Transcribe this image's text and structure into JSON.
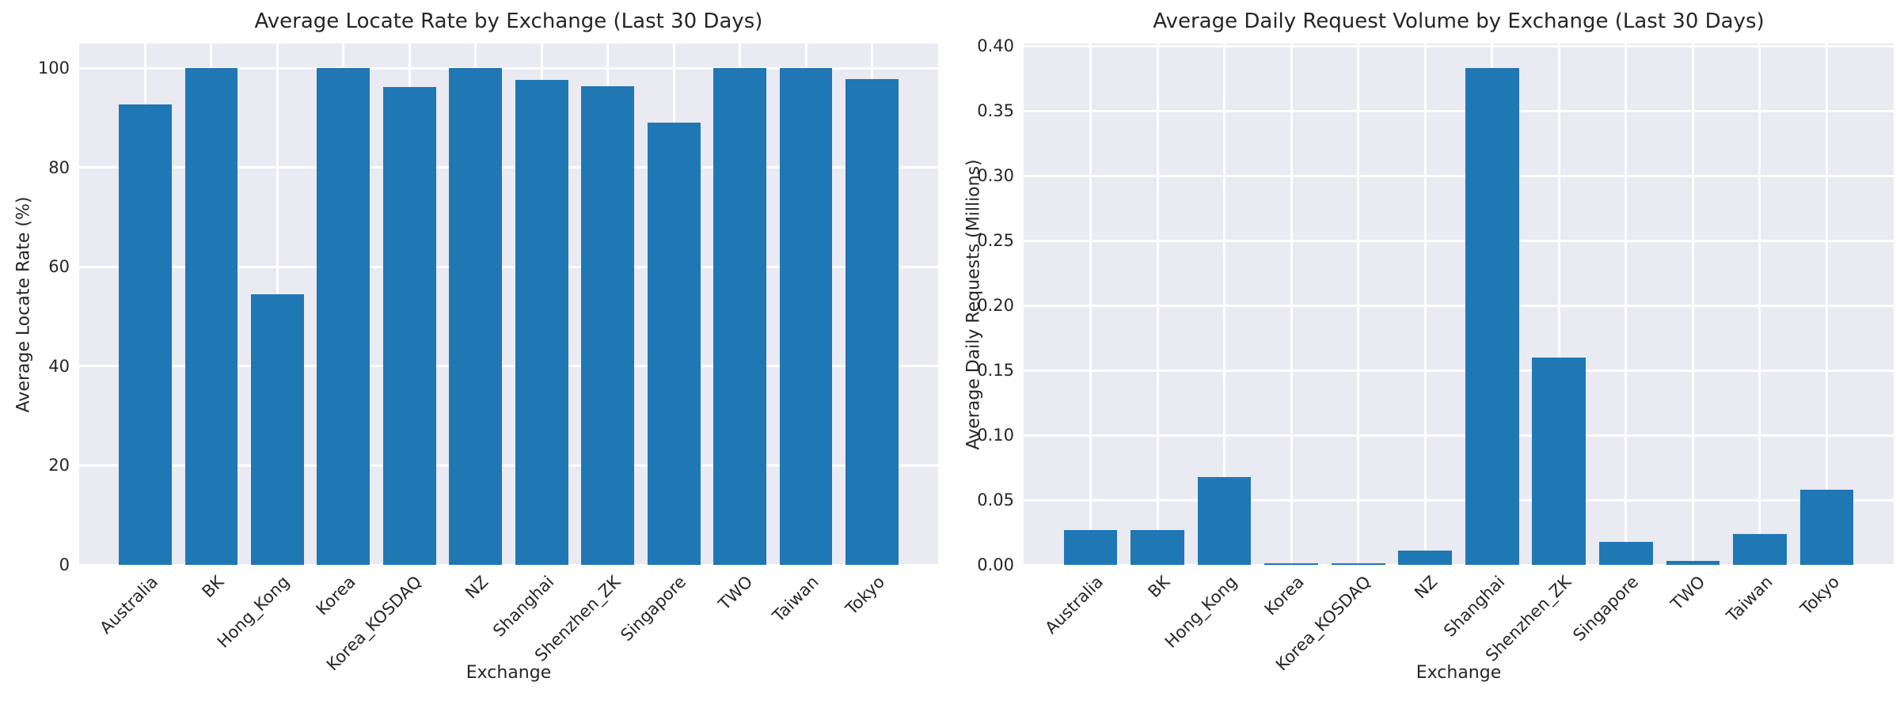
{
  "styles": {
    "bar_color": "#1f77b4",
    "plot_background": "#eaeaf2",
    "grid_color": "#ffffff",
    "text_color": "#262626",
    "figure_background": "#ffffff"
  },
  "chart_data": [
    {
      "type": "bar",
      "title": "Average Locate Rate by Exchange (Last 30 Days)",
      "xlabel": "Exchange",
      "ylabel": "Average Locate Rate (%)",
      "categories": [
        "Australia",
        "BK",
        "Hong_Kong",
        "Korea",
        "Korea_KOSDAQ",
        "NZ",
        "Shanghai",
        "Shenzhen_ZK",
        "Singapore",
        "TWO",
        "Taiwan",
        "Tokyo"
      ],
      "values": [
        92.7,
        100,
        54.5,
        100,
        96.2,
        100,
        97.7,
        96.4,
        89.1,
        100,
        100,
        97.8
      ],
      "ylim": [
        0,
        105
      ],
      "yticks": [
        0,
        20,
        40,
        60,
        80,
        100
      ],
      "ytick_labels": [
        "0",
        "20",
        "40",
        "60",
        "80",
        "100"
      ],
      "grid": true,
      "legend": "none"
    },
    {
      "type": "bar",
      "title": "Average Daily Request Volume by Exchange (Last 30 Days)",
      "xlabel": "Exchange",
      "ylabel": "Average Daily Requests (Millions)",
      "categories": [
        "Australia",
        "BK",
        "Hong_Kong",
        "Korea",
        "Korea_KOSDAQ",
        "NZ",
        "Shanghai",
        "Shenzhen_ZK",
        "Singapore",
        "TWO",
        "Taiwan",
        "Tokyo"
      ],
      "values": [
        0.027,
        0.027,
        0.068,
        0.001,
        0.001,
        0.011,
        0.383,
        0.16,
        0.018,
        0.003,
        0.024,
        0.058
      ],
      "ylim": [
        0,
        0.402
      ],
      "yticks": [
        0,
        0.05,
        0.1,
        0.15,
        0.2,
        0.25,
        0.3,
        0.35,
        0.4
      ],
      "ytick_labels": [
        "0.00",
        "0.05",
        "0.10",
        "0.15",
        "0.20",
        "0.25",
        "0.30",
        "0.35",
        "0.40"
      ],
      "grid": true,
      "legend": "none"
    }
  ]
}
